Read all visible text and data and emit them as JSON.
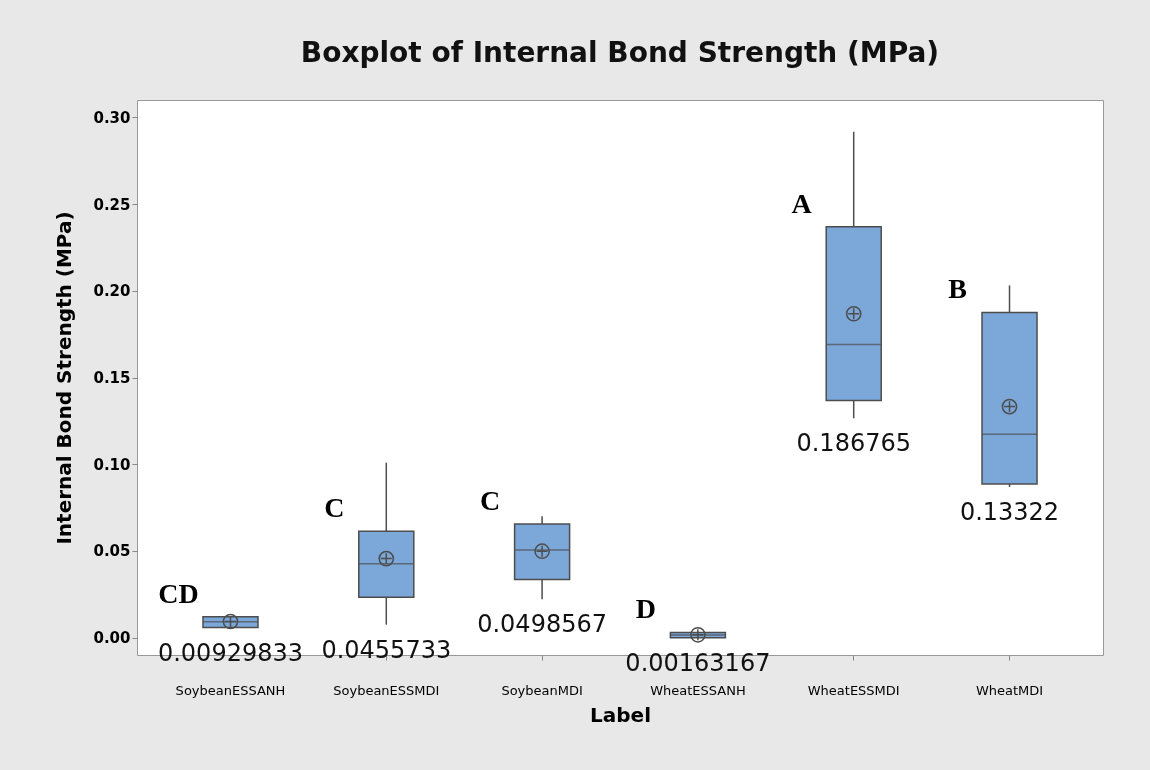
{
  "chart_data": {
    "type": "box",
    "title": "Boxplot of Internal Bond Strength (MPa)",
    "xlabel": "Label",
    "ylabel": "Internal Bond Strength (MPa)",
    "categories": [
      "SoybeanESSANH",
      "SoybeanESSMDI",
      "SoybeanMDI",
      "WheatESSANH",
      "WheatESSMDI",
      "WheatMDI"
    ],
    "boxes": [
      {
        "low": 0.0058,
        "q1": 0.0058,
        "median": 0.0092,
        "q3": 0.012,
        "high": 0.012,
        "mean": 0.00929833
      },
      {
        "low": 0.0075,
        "q1": 0.0233,
        "median": 0.0426,
        "q3": 0.0613,
        "high": 0.1009,
        "mean": 0.0455733
      },
      {
        "low": 0.0222,
        "q1": 0.0336,
        "median": 0.0506,
        "q3": 0.0656,
        "high": 0.07,
        "mean": 0.0498567
      },
      {
        "low": 0.0,
        "q1": 0.0,
        "median": 0.0015,
        "q3": 0.003,
        "high": 0.003,
        "mean": 0.00163167
      },
      {
        "low": 0.1265,
        "q1": 0.1368,
        "median": 0.169,
        "q3": 0.2369,
        "high": 0.2917,
        "mean": 0.186765
      },
      {
        "low": 0.0869,
        "q1": 0.0886,
        "median": 0.1173,
        "q3": 0.1875,
        "high": 0.2031,
        "mean": 0.13322
      }
    ],
    "value_labels": [
      "0.00929833",
      "0.0455733",
      "0.0498567",
      "0.00163167",
      "0.186765",
      "0.13322"
    ],
    "color": "#7ba7d9",
    "ylim": [
      -0.01,
      0.31
    ],
    "yticks": [
      {
        "value": 0,
        "label": "0.00"
      },
      0.05,
      {
        "value": 0.1,
        "label": "0.10"
      },
      0.15,
      {
        "value": 0.2,
        "label": "0.20"
      },
      0.25,
      {
        "value": 0.3,
        "label": "0.30"
      }
    ],
    "grid": false,
    "annotations": [
      "CD",
      "C",
      "C",
      "D",
      "A",
      "B"
    ]
  }
}
